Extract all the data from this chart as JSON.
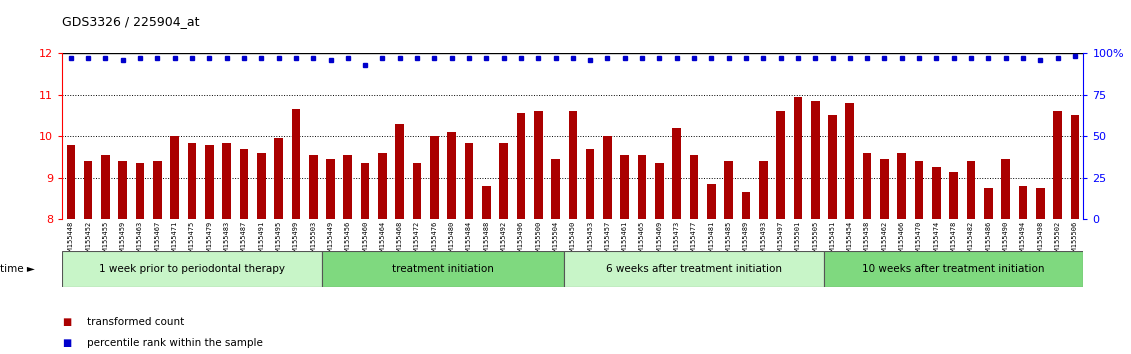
{
  "title": "GDS3326 / 225904_at",
  "samples": [
    "GSM155448",
    "GSM155452",
    "GSM155455",
    "GSM155459",
    "GSM155463",
    "GSM155467",
    "GSM155471",
    "GSM155475",
    "GSM155479",
    "GSM155483",
    "GSM155487",
    "GSM155491",
    "GSM155495",
    "GSM155499",
    "GSM155503",
    "GSM155449",
    "GSM155456",
    "GSM155460",
    "GSM155464",
    "GSM155468",
    "GSM155472",
    "GSM155476",
    "GSM155480",
    "GSM155484",
    "GSM155488",
    "GSM155492",
    "GSM155496",
    "GSM155500",
    "GSM155504",
    "GSM155450",
    "GSM155453",
    "GSM155457",
    "GSM155461",
    "GSM155465",
    "GSM155469",
    "GSM155473",
    "GSM155477",
    "GSM155481",
    "GSM155485",
    "GSM155489",
    "GSM155493",
    "GSM155497",
    "GSM155501",
    "GSM155505",
    "GSM155451",
    "GSM155454",
    "GSM155458",
    "GSM155462",
    "GSM155466",
    "GSM155470",
    "GSM155474",
    "GSM155478",
    "GSM155482",
    "GSM155486",
    "GSM155490",
    "GSM155494",
    "GSM155498",
    "GSM155502",
    "GSM155506"
  ],
  "red_values": [
    9.8,
    9.4,
    9.55,
    9.4,
    9.35,
    9.4,
    10.0,
    9.85,
    9.8,
    9.85,
    9.7,
    9.6,
    9.95,
    10.65,
    9.55,
    9.45,
    9.55,
    9.35,
    9.6,
    10.3,
    9.35,
    10.0,
    10.1,
    9.85,
    8.8,
    9.85,
    10.55,
    10.6,
    9.45,
    10.6,
    9.7,
    10.0,
    9.55,
    9.55,
    9.35,
    10.2,
    9.55,
    8.85,
    9.4,
    8.65,
    9.4,
    10.6,
    10.95,
    10.85,
    10.5,
    10.8,
    9.6,
    9.45,
    9.6,
    9.4,
    9.25,
    9.15,
    9.4,
    8.75,
    9.45,
    8.8,
    8.75,
    10.6,
    10.5
  ],
  "blue_values_pct": [
    97,
    97,
    97,
    96,
    97,
    97,
    97,
    97,
    97,
    97,
    97,
    97,
    97,
    97,
    97,
    96,
    97,
    93,
    97,
    97,
    97,
    97,
    97,
    97,
    97,
    97,
    97,
    97,
    97,
    97,
    96,
    97,
    97,
    97,
    97,
    97,
    97,
    97,
    97,
    97,
    97,
    97,
    97,
    97,
    97,
    97,
    97,
    97,
    97,
    97,
    97,
    97,
    97,
    97,
    97,
    97,
    96,
    97,
    98
  ],
  "groups": [
    {
      "label": "1 week prior to periodontal therapy",
      "start": 0,
      "end": 15,
      "color": "#c8f5c8"
    },
    {
      "label": "treatment initiation",
      "start": 15,
      "end": 29,
      "color": "#7FD97F"
    },
    {
      "label": "6 weeks after treatment initiation",
      "start": 29,
      "end": 44,
      "color": "#c8f5c8"
    },
    {
      "label": "10 weeks after treatment initiation",
      "start": 44,
      "end": 59,
      "color": "#7FD97F"
    }
  ],
  "ylim_left": [
    8,
    12
  ],
  "ylim_right": [
    0,
    100
  ],
  "yticks_left": [
    8,
    9,
    10,
    11,
    12
  ],
  "yticks_right": [
    0,
    25,
    50,
    75,
    100
  ],
  "ytick_right_labels": [
    "0",
    "25",
    "50",
    "75",
    "100%"
  ],
  "bar_color": "#AA0000",
  "dot_color": "#0000CC",
  "background_color": "#ffffff",
  "legend_items": [
    {
      "label": "transformed count",
      "color": "#AA0000"
    },
    {
      "label": "percentile rank within the sample",
      "color": "#0000CC"
    }
  ],
  "group_border_color": "#555555",
  "time_label": "time ►"
}
